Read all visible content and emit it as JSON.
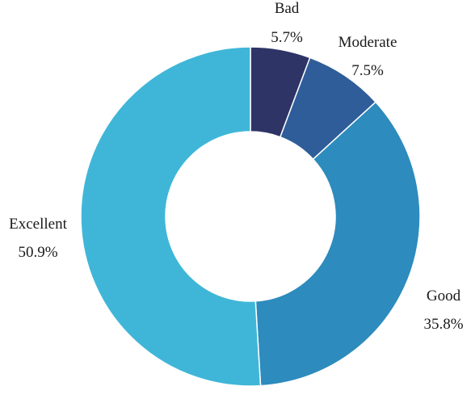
{
  "chart_data": {
    "type": "pie",
    "donut": true,
    "direction": "clockwise",
    "start": "top",
    "slices": [
      {
        "label": "Bad",
        "value": 5.7,
        "display": "5.7%",
        "color": "#2f3467"
      },
      {
        "label": "Moderate",
        "value": 7.5,
        "display": "7.5%",
        "color": "#2e5d99"
      },
      {
        "label": "Good",
        "value": 35.8,
        "display": "35.8%",
        "color": "#2d8bbd"
      },
      {
        "label": "Excellent",
        "value": 50.9,
        "display": "50.9%",
        "color": "#3fb6d8"
      }
    ]
  }
}
